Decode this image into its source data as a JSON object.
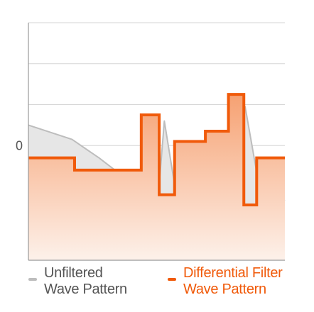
{
  "chart_data": {
    "type": "line",
    "title": "",
    "xlabel": "",
    "ylabel": "",
    "x": [
      0,
      1,
      1.7,
      2,
      2.75,
      3,
      4,
      5,
      5.9,
      6,
      6.3,
      6.4,
      7,
      8,
      8.9,
      9,
      9.65,
      9.75,
      10
    ],
    "xlim": [
      0,
      10
    ],
    "ylim": [
      -2.8,
      3
    ],
    "y_ticks": [
      0
    ],
    "y_tick_labels": [
      "0"
    ],
    "grid": true,
    "legend_position": "bottom",
    "series": [
      {
        "name": "Unfiltered Wave Pattern",
        "color": "#bdbdbd",
        "fill": "#e6e6e6",
        "line": "linear",
        "points": [
          {
            "x": 0,
            "y": 0.5
          },
          {
            "x": 1.7,
            "y": 0.15
          },
          {
            "x": 2.75,
            "y": -0.3
          },
          {
            "x": 4,
            "y": -0.9
          },
          {
            "x": 5.1,
            "y": -0.95
          },
          {
            "x": 5.3,
            "y": 0.6
          },
          {
            "x": 5.75,
            "y": -1.15
          },
          {
            "x": 7,
            "y": -1.1
          },
          {
            "x": 8,
            "y": -0.7
          },
          {
            "x": 8.45,
            "y": 0.95
          },
          {
            "x": 9,
            "y": -1.0
          },
          {
            "x": 10,
            "y": -1.35
          }
        ]
      },
      {
        "name": "Differential Filter Wave Pattern",
        "color": "#f05a0a",
        "fill_top": "#f6a172",
        "fill_bottom": "#fdf1ea",
        "line": "step",
        "points": [
          {
            "x": 0,
            "y": -0.3
          },
          {
            "x": 1.8,
            "y": -0.6
          },
          {
            "x": 4.4,
            "y": 0.75
          },
          {
            "x": 5.1,
            "y": -1.2
          },
          {
            "x": 5.7,
            "y": 0.1
          },
          {
            "x": 6.9,
            "y": 0.35
          },
          {
            "x": 7.8,
            "y": 1.25
          },
          {
            "x": 8.4,
            "y": -1.45
          },
          {
            "x": 8.9,
            "y": -0.3
          },
          {
            "x": 10,
            "y": -0.3
          }
        ]
      }
    ]
  },
  "legend": [
    {
      "line1": "Unfiltered",
      "line2": "Wave Pattern",
      "color": "#bdbdbd",
      "text_color": "#555555"
    },
    {
      "line1": "Differential Filter",
      "line2": "Wave Pattern",
      "color": "#f05a0a",
      "text_color": "#f05a0a"
    }
  ]
}
